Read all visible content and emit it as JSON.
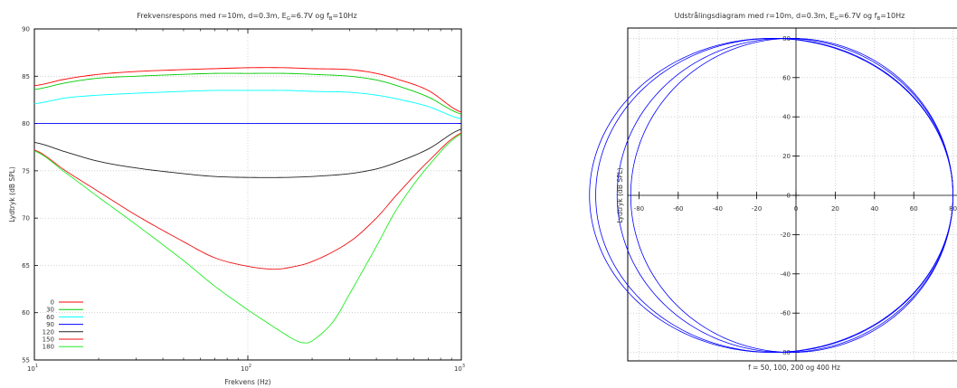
{
  "colors": {
    "series": [
      "#ff0000",
      "#00cc00",
      "#00ffff",
      "#0000ff",
      "#222222",
      "#ee1111",
      "#22ee22"
    ],
    "grid": "#bbbbbb",
    "polar": "#0000ff"
  },
  "chart_data": [
    {
      "type": "line",
      "title": "Frekvensrespons med r=10m, d=0.3m, E",
      "title_sub1": "G",
      "title_mid": "=6.7V og f",
      "title_sub2": "B",
      "title_end": "=10Hz",
      "xlabel": "Frekvens (Hz)",
      "ylabel": "Lydtryk (dB SPL)",
      "xscale": "log",
      "xlim": [
        10,
        1000
      ],
      "ylim": [
        55,
        90
      ],
      "xticks": [
        {
          "base": "10",
          "exp": "1"
        },
        {
          "base": "10",
          "exp": "2"
        },
        {
          "base": "10",
          "exp": "3"
        }
      ],
      "yticks": [
        "55",
        "60",
        "65",
        "70",
        "75",
        "80",
        "85",
        "90"
      ],
      "grid": true,
      "legend_position": "bottom-left",
      "series": [
        {
          "name": "0",
          "x": [
            10,
            14,
            20,
            30,
            50,
            70,
            100,
            150,
            200,
            300,
            400,
            500,
            700,
            1000
          ],
          "values": [
            84.0,
            84.7,
            85.2,
            85.5,
            85.7,
            85.8,
            85.9,
            85.9,
            85.8,
            85.7,
            85.3,
            84.7,
            83.5,
            81.2
          ]
        },
        {
          "name": "30",
          "x": [
            10,
            14,
            20,
            30,
            50,
            70,
            100,
            150,
            200,
            300,
            400,
            500,
            700,
            1000
          ],
          "values": [
            83.6,
            84.3,
            84.8,
            85.0,
            85.2,
            85.3,
            85.3,
            85.3,
            85.2,
            85.0,
            84.6,
            84.0,
            82.8,
            81.0
          ]
        },
        {
          "name": "60",
          "x": [
            10,
            14,
            20,
            30,
            50,
            70,
            100,
            150,
            200,
            300,
            400,
            500,
            700,
            1000
          ],
          "values": [
            82.1,
            82.7,
            83.0,
            83.2,
            83.4,
            83.5,
            83.5,
            83.5,
            83.4,
            83.3,
            83.0,
            82.6,
            81.8,
            80.5
          ]
        },
        {
          "name": "90",
          "x": [
            10,
            100,
            1000
          ],
          "values": [
            80.0,
            80.0,
            80.0
          ]
        },
        {
          "name": "120",
          "x": [
            10,
            14,
            20,
            30,
            50,
            70,
            100,
            150,
            200,
            300,
            400,
            500,
            700,
            1000
          ],
          "values": [
            78.0,
            77.0,
            76.0,
            75.3,
            74.7,
            74.4,
            74.3,
            74.3,
            74.4,
            74.7,
            75.2,
            75.9,
            77.3,
            79.4
          ]
        },
        {
          "name": "150",
          "x": [
            10,
            14,
            20,
            30,
            50,
            70,
            100,
            130,
            150,
            200,
            300,
            400,
            500,
            700,
            1000
          ],
          "values": [
            77.2,
            75.0,
            72.8,
            70.3,
            67.5,
            65.8,
            64.9,
            64.6,
            64.7,
            65.4,
            67.5,
            70.0,
            72.5,
            76.0,
            79.0
          ]
        },
        {
          "name": "180",
          "x": [
            10,
            14,
            20,
            30,
            50,
            70,
            100,
            130,
            150,
            170,
            185,
            200,
            250,
            300,
            400,
            500,
            700,
            1000
          ],
          "values": [
            77.1,
            74.8,
            72.2,
            69.3,
            65.5,
            62.8,
            60.3,
            58.6,
            57.7,
            57.0,
            56.8,
            57.0,
            59.0,
            62.0,
            67.0,
            71.0,
            75.5,
            78.9
          ]
        }
      ]
    },
    {
      "type": "line",
      "subtype": "polar",
      "title": "Udstrålingsdiagram med r=10m, d=0.3m, E",
      "title_sub1": "G",
      "title_mid": "=6.7V og f",
      "title_sub2": "B",
      "title_end": "=10Hz",
      "ylabel": "Lydtryk (dB SPL)",
      "xlabel": "f = 50, 100, 200 og 400 Hz",
      "xlim": [
        -80,
        80
      ],
      "ylim": [
        -80,
        80
      ],
      "ticks": [
        "-80",
        "-60",
        "-40",
        "-20",
        "0",
        "20",
        "40",
        "60",
        "80"
      ],
      "yticks_plain": [
        "80",
        "60",
        "40",
        "20",
        "0"
      ],
      "yticks_neg": [
        "-20",
        "-40",
        "-60",
        "-80"
      ],
      "grid": true,
      "series": [
        {
          "name": "50 Hz",
          "min_level": 65.5,
          "max_level": 85.7
        },
        {
          "name": "100 Hz",
          "min_level": 60.3,
          "max_level": 85.9
        },
        {
          "name": "200 Hz",
          "min_level": 57.0,
          "max_level": 85.8
        },
        {
          "name": "400 Hz",
          "min_level": 67.0,
          "max_level": 85.3
        }
      ]
    }
  ]
}
